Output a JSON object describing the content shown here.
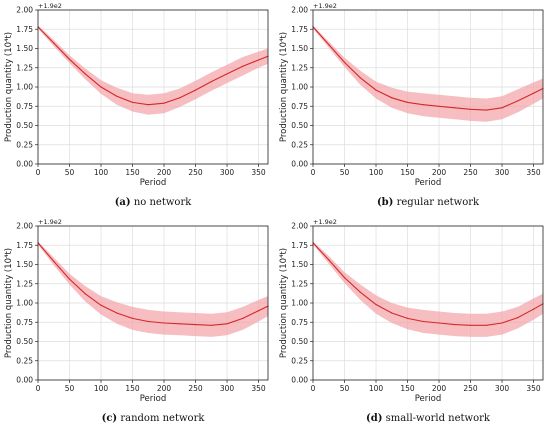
{
  "colors": {
    "line": "#d62728",
    "band": "#f4a3a8"
  },
  "chart_data": [
    {
      "type": "line",
      "caption_label": "(a)",
      "caption_text": "no network",
      "xlabel": "Period",
      "ylabel": "Production quantity (10⁴t)",
      "offset_label": "+1.9e2",
      "xlim": [
        0,
        365
      ],
      "ylim": [
        0.0,
        2.0
      ],
      "xticks": [
        "0",
        "50",
        "100",
        "150",
        "200",
        "250",
        "300",
        "350"
      ],
      "yticks": [
        "0.00",
        "0.25",
        "0.50",
        "0.75",
        "1.00",
        "1.25",
        "1.50",
        "1.75",
        "2.00"
      ],
      "grid": true,
      "series": [
        {
          "x": [
            0,
            25,
            50,
            75,
            100,
            125,
            150,
            175,
            200,
            225,
            250,
            275,
            300,
            325,
            350,
            365
          ],
          "y": [
            1.78,
            1.57,
            1.36,
            1.17,
            1.0,
            0.88,
            0.8,
            0.77,
            0.79,
            0.86,
            0.96,
            1.07,
            1.17,
            1.27,
            1.35,
            1.4
          ],
          "lower": [
            1.76,
            1.53,
            1.31,
            1.1,
            0.91,
            0.77,
            0.68,
            0.64,
            0.66,
            0.74,
            0.84,
            0.95,
            1.05,
            1.15,
            1.25,
            1.3
          ],
          "upper": [
            1.8,
            1.61,
            1.41,
            1.24,
            1.09,
            0.99,
            0.92,
            0.9,
            0.92,
            0.98,
            1.08,
            1.19,
            1.29,
            1.39,
            1.46,
            1.5
          ]
        }
      ]
    },
    {
      "type": "line",
      "caption_label": "(b)",
      "caption_text": "regular network",
      "xlabel": "Period",
      "ylabel": "Production quantity (10⁴t)",
      "offset_label": "+1.9e2",
      "xlim": [
        0,
        365
      ],
      "ylim": [
        0.0,
        2.0
      ],
      "xticks": [
        "0",
        "50",
        "100",
        "150",
        "200",
        "250",
        "300",
        "350"
      ],
      "yticks": [
        "0.00",
        "0.25",
        "0.50",
        "0.75",
        "1.00",
        "1.25",
        "1.50",
        "1.75",
        "2.00"
      ],
      "grid": true,
      "series": [
        {
          "x": [
            0,
            25,
            50,
            75,
            100,
            125,
            150,
            175,
            200,
            225,
            250,
            275,
            300,
            325,
            350,
            365
          ],
          "y": [
            1.78,
            1.55,
            1.32,
            1.12,
            0.96,
            0.86,
            0.8,
            0.77,
            0.75,
            0.73,
            0.71,
            0.7,
            0.73,
            0.82,
            0.92,
            0.98
          ],
          "lower": [
            1.76,
            1.51,
            1.26,
            1.03,
            0.85,
            0.73,
            0.66,
            0.62,
            0.6,
            0.58,
            0.56,
            0.55,
            0.58,
            0.67,
            0.78,
            0.85
          ],
          "upper": [
            1.8,
            1.59,
            1.38,
            1.21,
            1.07,
            0.99,
            0.94,
            0.92,
            0.9,
            0.88,
            0.86,
            0.85,
            0.88,
            0.97,
            1.06,
            1.11
          ]
        }
      ]
    },
    {
      "type": "line",
      "caption_label": "(c)",
      "caption_text": "random network",
      "xlabel": "Period",
      "ylabel": "Production quantity (10⁴t)",
      "offset_label": "+1.9e2",
      "xlim": [
        0,
        365
      ],
      "ylim": [
        0.0,
        2.0
      ],
      "xticks": [
        "0",
        "50",
        "100",
        "150",
        "200",
        "250",
        "300",
        "350"
      ],
      "yticks": [
        "0.00",
        "0.25",
        "0.50",
        "0.75",
        "1.00",
        "1.25",
        "1.50",
        "1.75",
        "2.00"
      ],
      "grid": true,
      "series": [
        {
          "x": [
            0,
            25,
            50,
            75,
            100,
            125,
            150,
            175,
            200,
            225,
            250,
            275,
            300,
            325,
            350,
            365
          ],
          "y": [
            1.78,
            1.54,
            1.31,
            1.12,
            0.97,
            0.87,
            0.8,
            0.76,
            0.74,
            0.73,
            0.72,
            0.71,
            0.73,
            0.8,
            0.9,
            0.96
          ],
          "lower": [
            1.76,
            1.49,
            1.24,
            1.02,
            0.85,
            0.73,
            0.65,
            0.61,
            0.59,
            0.58,
            0.57,
            0.56,
            0.58,
            0.65,
            0.76,
            0.83
          ],
          "upper": [
            1.8,
            1.59,
            1.38,
            1.22,
            1.09,
            1.01,
            0.95,
            0.91,
            0.89,
            0.88,
            0.87,
            0.86,
            0.88,
            0.95,
            1.04,
            1.09
          ]
        }
      ]
    },
    {
      "type": "line",
      "caption_label": "(d)",
      "caption_text": "small-world network",
      "xlabel": "Period",
      "ylabel": "Production quantity (10⁴t)",
      "offset_label": "+1.9e2",
      "xlim": [
        0,
        365
      ],
      "ylim": [
        0.0,
        2.0
      ],
      "xticks": [
        "0",
        "50",
        "100",
        "150",
        "200",
        "250",
        "300",
        "350"
      ],
      "yticks": [
        "0.00",
        "0.25",
        "0.50",
        "0.75",
        "1.00",
        "1.25",
        "1.50",
        "1.75",
        "2.00"
      ],
      "grid": true,
      "series": [
        {
          "x": [
            0,
            25,
            50,
            75,
            100,
            125,
            150,
            175,
            200,
            225,
            250,
            275,
            300,
            325,
            350,
            365
          ],
          "y": [
            1.78,
            1.56,
            1.33,
            1.14,
            0.98,
            0.87,
            0.8,
            0.76,
            0.74,
            0.72,
            0.71,
            0.71,
            0.74,
            0.81,
            0.92,
            0.99
          ],
          "lower": [
            1.76,
            1.51,
            1.26,
            1.04,
            0.86,
            0.74,
            0.66,
            0.61,
            0.59,
            0.57,
            0.56,
            0.56,
            0.59,
            0.67,
            0.78,
            0.86
          ],
          "upper": [
            1.8,
            1.61,
            1.4,
            1.24,
            1.1,
            1.0,
            0.94,
            0.91,
            0.89,
            0.87,
            0.86,
            0.86,
            0.89,
            0.95,
            1.06,
            1.12
          ]
        }
      ]
    }
  ]
}
